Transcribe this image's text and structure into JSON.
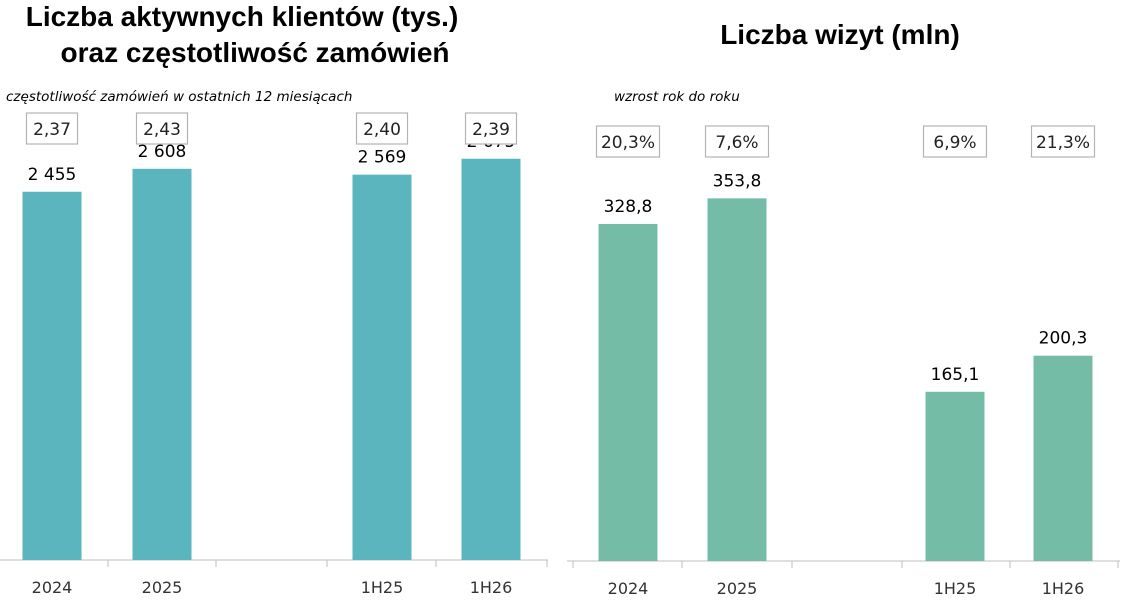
{
  "chart_data": [
    {
      "type": "bar",
      "title_lines": [
        "Liczba aktywnych klientów (tys.)",
        "oraz częstotliwość zamówień"
      ],
      "subtitle": "częstotliwość zamówień w ostatnich 12 miesiącach",
      "categories": [
        "2024",
        "2025",
        "",
        "1H25",
        "1H26"
      ],
      "values": [
        2455,
        2608,
        null,
        2569,
        2675
      ],
      "value_labels": [
        "2 455",
        "2 608",
        "",
        "2 569",
        "2 675"
      ],
      "box_labels": [
        "2,37",
        "2,43",
        "",
        "2,40",
        "2,39"
      ],
      "ylim": [
        0,
        3000
      ],
      "color": "#5ab5be",
      "grid": false
    },
    {
      "type": "bar",
      "title_lines": [
        "Liczba wizyt (mln)"
      ],
      "subtitle": "wzrost rok do roku",
      "categories": [
        "2024",
        "2025",
        "",
        "1H25",
        "1H26"
      ],
      "values": [
        328.8,
        353.8,
        null,
        165.1,
        200.3
      ],
      "value_labels": [
        "328,8",
        "353,8",
        "",
        "165,1",
        "200,3"
      ],
      "box_labels": [
        "20,3%",
        "7,6%",
        "",
        "6,9%",
        "21,3%"
      ],
      "ylim": [
        0,
        400
      ],
      "color": "#74bca6",
      "grid": false
    }
  ]
}
